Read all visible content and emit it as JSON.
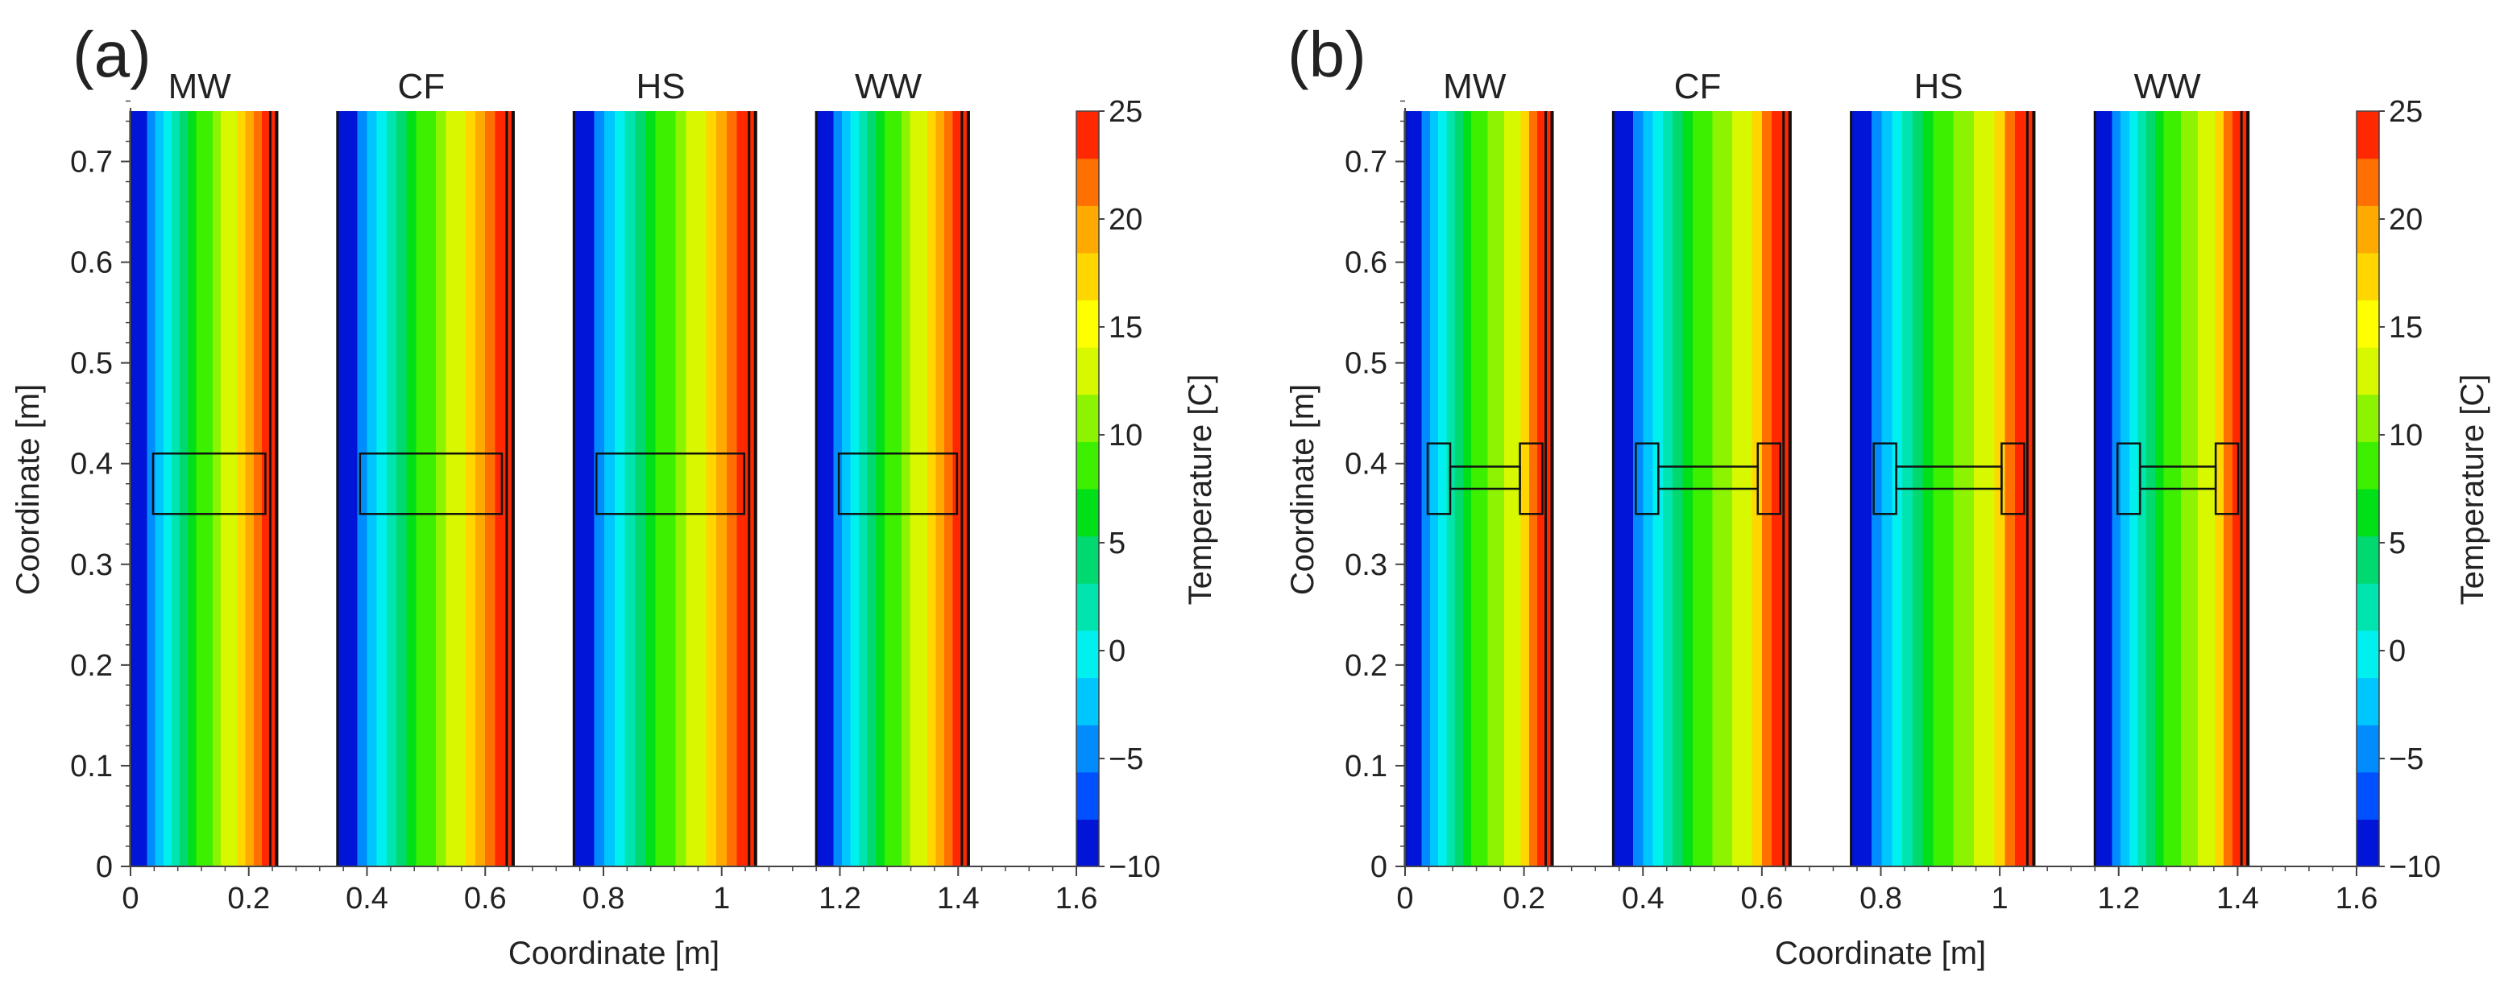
{
  "figure": {
    "colormap": [
      "#0015d8",
      "#0050ff",
      "#008cff",
      "#00c6ff",
      "#00f0f0",
      "#00e4b0",
      "#00d870",
      "#00e018",
      "#3cf000",
      "#8cf400",
      "#d8f800",
      "#ffff00",
      "#ffd600",
      "#ffaa00",
      "#ff7000",
      "#ff2800"
    ],
    "colors": {
      "wall_edge": "#111111",
      "axis": "#444444",
      "text": "#222222",
      "background": "#ffffff"
    }
  },
  "chart_data": [
    {
      "type": "heatmap",
      "panel_label": "(a)",
      "xlabel": "Coordinate [m]",
      "ylabel": "Coordinate [m]",
      "xlim": [
        0,
        1.6
      ],
      "ylim": [
        0,
        0.75
      ],
      "xticks": [
        0,
        0.2,
        0.4,
        0.6,
        0.8,
        1,
        1.2,
        1.4,
        1.6
      ],
      "xtick_labels": [
        "0",
        "0.2",
        "0.4",
        "0.6",
        "0.8",
        "1",
        "1.2",
        "1.4",
        "1.6"
      ],
      "yticks": [
        0,
        0.1,
        0.2,
        0.3,
        0.4,
        0.5,
        0.6,
        0.7
      ],
      "ytick_labels": [
        "0",
        "0.1",
        "0.2",
        "0.3",
        "0.4",
        "0.5",
        "0.6",
        "0.7"
      ],
      "colorbar": {
        "label": "Temperature [C]",
        "range": [
          -10,
          25
        ],
        "ticks": [
          -10,
          -5,
          0,
          5,
          10,
          15,
          20,
          25
        ],
        "tick_labels": [
          "−10",
          "−5",
          "0",
          "5",
          "10",
          "15",
          "20",
          "25"
        ]
      },
      "walls": [
        {
          "name": "MW",
          "x_start": 0,
          "x_end": 0.25,
          "temperature_profile": [
            -10,
            -8,
            -5,
            -2,
            0,
            2,
            4,
            6,
            8,
            9,
            10,
            12,
            14,
            17,
            20,
            22,
            23,
            23
          ]
        },
        {
          "name": "CF",
          "x_start": 0.35,
          "x_end": 0.65,
          "temperature_profile": [
            -10,
            -8,
            -5,
            -2,
            0,
            2,
            4,
            6,
            8,
            9,
            10,
            12,
            14,
            17,
            20,
            22,
            23,
            23
          ]
        },
        {
          "name": "HS",
          "x_start": 0.75,
          "x_end": 1.06,
          "temperature_profile": [
            -10,
            -8,
            -5,
            -2,
            0,
            2,
            4,
            6,
            8,
            9,
            10,
            12,
            14,
            17,
            20,
            22,
            23,
            23
          ]
        },
        {
          "name": "WW",
          "x_start": 1.16,
          "x_end": 1.42,
          "temperature_profile": [
            -10,
            -8,
            -5,
            -2,
            0,
            2,
            4,
            6,
            8,
            9,
            10,
            12,
            14,
            17,
            20,
            22,
            23,
            23
          ]
        }
      ],
      "insert": {
        "type": "rectangular_beam",
        "y_bottom": 0.35,
        "y_top": 0.41
      }
    },
    {
      "type": "heatmap",
      "panel_label": "(b)",
      "xlabel": "Coordinate [m]",
      "ylabel": "Coordinate [m]",
      "xlim": [
        0,
        1.6
      ],
      "ylim": [
        0,
        0.75
      ],
      "xticks": [
        0,
        0.2,
        0.4,
        0.6,
        0.8,
        1,
        1.2,
        1.4,
        1.6
      ],
      "xtick_labels": [
        "0",
        "0.2",
        "0.4",
        "0.6",
        "0.8",
        "1",
        "1.2",
        "1.4",
        "1.6"
      ],
      "yticks": [
        0,
        0.1,
        0.2,
        0.3,
        0.4,
        0.5,
        0.6,
        0.7
      ],
      "ytick_labels": [
        "0",
        "0.1",
        "0.2",
        "0.3",
        "0.4",
        "0.5",
        "0.6",
        "0.7"
      ],
      "colorbar": {
        "label": "Temperature [C]",
        "range": [
          -10,
          25
        ],
        "ticks": [
          -10,
          -5,
          0,
          5,
          10,
          15,
          20,
          25
        ],
        "tick_labels": [
          "−10",
          "−5",
          "0",
          "5",
          "10",
          "15",
          "20",
          "25"
        ]
      },
      "walls": [
        {
          "name": "MW",
          "x_start": 0,
          "x_end": 0.25,
          "temperature_profile": [
            -10,
            -8,
            -5,
            -2,
            0,
            2,
            4,
            6,
            8,
            9,
            10,
            11,
            12,
            14,
            17,
            21,
            23,
            23
          ]
        },
        {
          "name": "CF",
          "x_start": 0.35,
          "x_end": 0.65,
          "temperature_profile": [
            -10,
            -8,
            -5,
            -2,
            0,
            2,
            4,
            6,
            8,
            9,
            10,
            11,
            12,
            14,
            17,
            21,
            23,
            23
          ]
        },
        {
          "name": "HS",
          "x_start": 0.75,
          "x_end": 1.06,
          "temperature_profile": [
            -10,
            -8,
            -5,
            -2,
            0,
            2,
            4,
            6,
            8,
            9,
            10,
            11,
            12,
            14,
            17,
            21,
            23,
            23
          ]
        },
        {
          "name": "WW",
          "x_start": 1.16,
          "x_end": 1.42,
          "temperature_profile": [
            -10,
            -8,
            -5,
            -2,
            0,
            2,
            4,
            6,
            8,
            9,
            10,
            11,
            12,
            14,
            17,
            21,
            23,
            23
          ]
        }
      ],
      "insert": {
        "type": "i_beam",
        "y_bottom": 0.35,
        "y_top": 0.42,
        "web_y_bottom": 0.375,
        "web_y_top": 0.397
      }
    }
  ]
}
